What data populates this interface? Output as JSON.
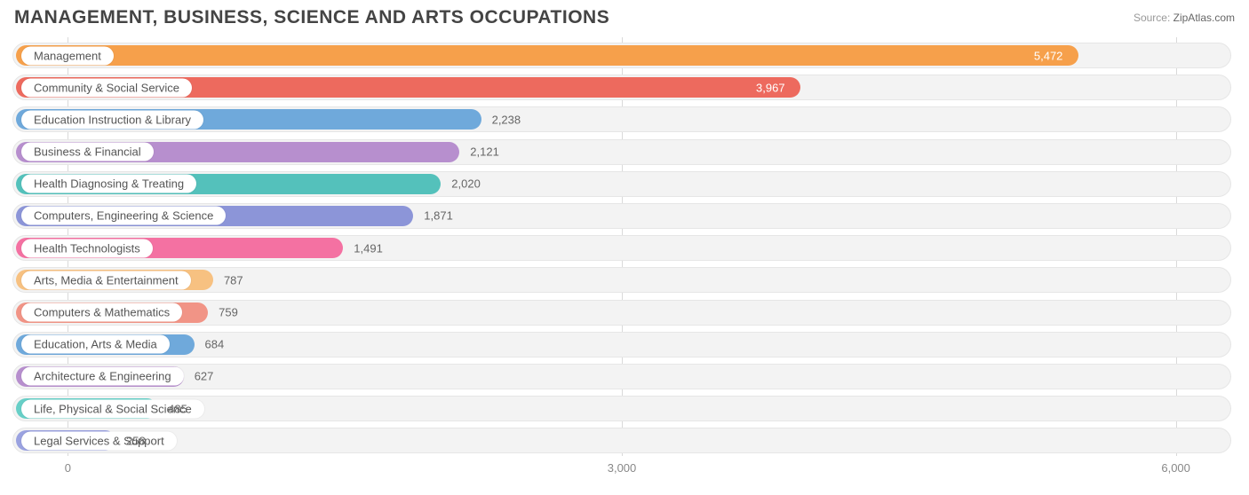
{
  "header": {
    "title": "MANAGEMENT, BUSINESS, SCIENCE AND ARTS OCCUPATIONS",
    "source_label": "Source:",
    "source_name": "ZipAtlas.com"
  },
  "chart": {
    "type": "bar-horizontal",
    "background_color": "#ffffff",
    "track_color": "#f3f3f3",
    "track_border_color": "#e6e6e6",
    "grid_color": "#d9d9d9",
    "label_fontsize": 13,
    "value_fontsize": 13,
    "title_fontsize": 21,
    "x_axis": {
      "min": -300,
      "max": 6300,
      "ticks": [
        0,
        3000,
        6000
      ],
      "tick_labels": [
        "0",
        "3,000",
        "6,000"
      ]
    },
    "bar_origin": 0,
    "bars": [
      {
        "label": "Management",
        "value": 5472,
        "display": "5,472",
        "color": "#f6a04b",
        "value_inside": true
      },
      {
        "label": "Community & Social Service",
        "value": 3967,
        "display": "3,967",
        "color": "#ed6a5e",
        "value_inside": true
      },
      {
        "label": "Education Instruction & Library",
        "value": 2238,
        "display": "2,238",
        "color": "#6fa9db",
        "value_inside": false
      },
      {
        "label": "Business & Financial",
        "value": 2121,
        "display": "2,121",
        "color": "#b78fce",
        "value_inside": false
      },
      {
        "label": "Health Diagnosing & Treating",
        "value": 2020,
        "display": "2,020",
        "color": "#54c1bb",
        "value_inside": false
      },
      {
        "label": "Computers, Engineering & Science",
        "value": 1871,
        "display": "1,871",
        "color": "#8c95d8",
        "value_inside": false
      },
      {
        "label": "Health Technologists",
        "value": 1491,
        "display": "1,491",
        "color": "#f471a2",
        "value_inside": false
      },
      {
        "label": "Arts, Media & Entertainment",
        "value": 787,
        "display": "787",
        "color": "#f7c181",
        "value_inside": false
      },
      {
        "label": "Computers & Mathematics",
        "value": 759,
        "display": "759",
        "color": "#f19486",
        "value_inside": false
      },
      {
        "label": "Education, Arts & Media",
        "value": 684,
        "display": "684",
        "color": "#6fa9db",
        "value_inside": false
      },
      {
        "label": "Architecture & Engineering",
        "value": 627,
        "display": "627",
        "color": "#b78fce",
        "value_inside": false
      },
      {
        "label": "Life, Physical & Social Science",
        "value": 485,
        "display": "485",
        "color": "#67cfc7",
        "value_inside": false
      },
      {
        "label": "Legal Services & Support",
        "value": 258,
        "display": "258",
        "color": "#9aa2e0",
        "value_inside": false
      }
    ]
  }
}
